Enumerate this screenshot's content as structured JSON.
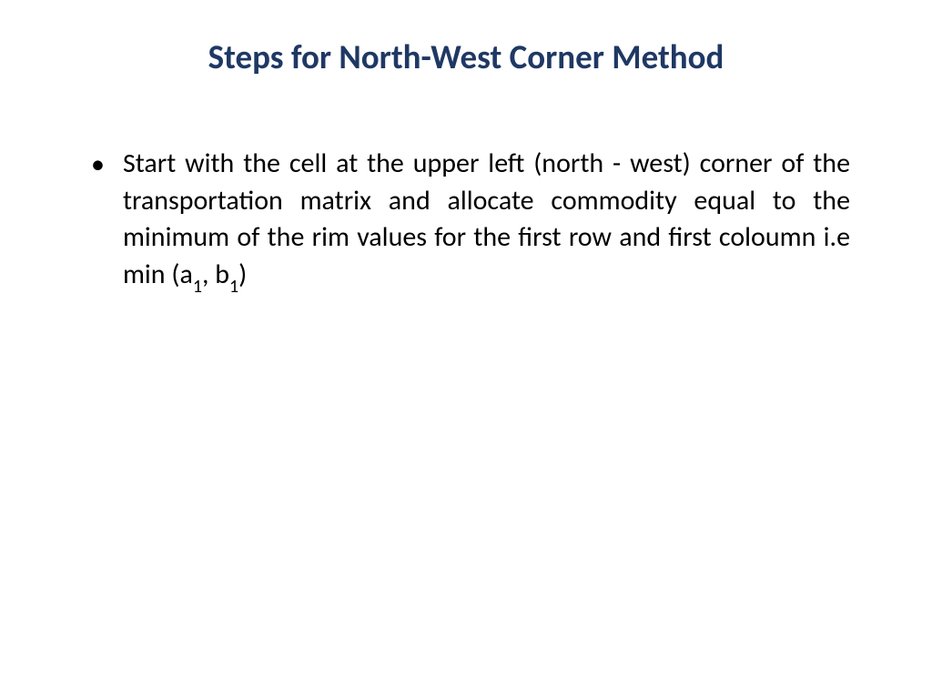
{
  "slide": {
    "title": "Steps for North-West Corner Method",
    "title_color": "#1f3864",
    "title_fontsize": 37,
    "title_fontweight": "bold",
    "background_color": "#ffffff",
    "bullet": {
      "marker": "•",
      "text_before_sub1": "Start  with the cell at the upper left (north - west) corner of the transportation matrix and allocate commodity equal to the minimum of the rim values for the first row and first coloumn i.e min (a",
      "sub1": "1",
      "text_between": ", b",
      "sub2": "1",
      "text_after": ")",
      "text_color": "#000000",
      "text_fontsize": 30
    }
  }
}
